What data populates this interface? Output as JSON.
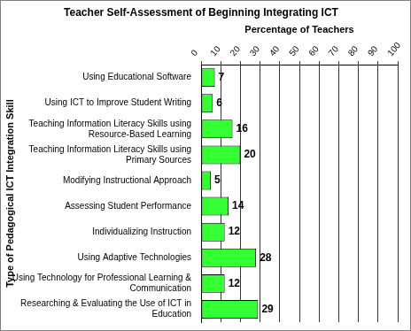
{
  "chart_data": {
    "type": "bar",
    "orientation": "horizontal",
    "title": "Teacher Self-Assessment of Beginning Integrating ICT",
    "x_label": "Percentage of Teachers",
    "y_label": "Type of Pedagogical ICT Integration Skill",
    "categories": [
      "Using Educational Software",
      "Using ICT to Improve Student Writing",
      "Teaching Information Literacy Skills using Resource-Based Learning",
      "Teaching Information Literacy Skills using Primary Sources",
      "Modifying Instructional Approach",
      "Assessing Student Performance",
      "Individualizing Instruction",
      "Using Adaptive Technologies",
      "Using Technology for Professional Learning & Communication",
      "Researching & Evaluating the Use of ICT in Education"
    ],
    "values": [
      7,
      6,
      16,
      20,
      5,
      14,
      12,
      28,
      12,
      29
    ],
    "color": "#33ff33",
    "xlim": [
      0,
      100
    ],
    "xticks": [
      0,
      10,
      20,
      30,
      40,
      50,
      60,
      70,
      80,
      90,
      100
    ],
    "grid": true,
    "data_labels": true
  }
}
